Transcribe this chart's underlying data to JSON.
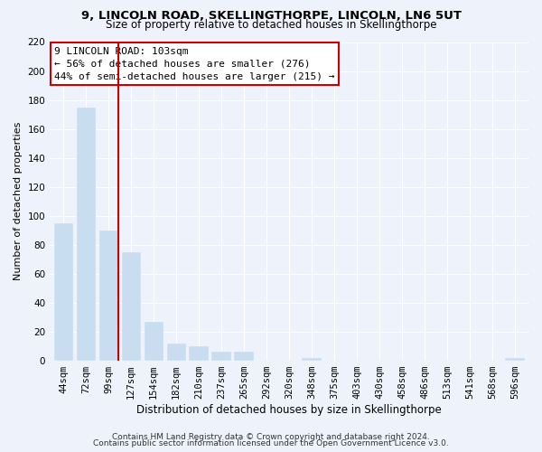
{
  "title": "9, LINCOLN ROAD, SKELLINGTHORPE, LINCOLN, LN6 5UT",
  "subtitle": "Size of property relative to detached houses in Skellingthorpe",
  "xlabel": "Distribution of detached houses by size in Skellingthorpe",
  "ylabel": "Number of detached properties",
  "bar_labels": [
    "44sqm",
    "72sqm",
    "99sqm",
    "127sqm",
    "154sqm",
    "182sqm",
    "210sqm",
    "237sqm",
    "265sqm",
    "292sqm",
    "320sqm",
    "348sqm",
    "375sqm",
    "403sqm",
    "430sqm",
    "458sqm",
    "486sqm",
    "513sqm",
    "541sqm",
    "568sqm",
    "596sqm"
  ],
  "bar_values": [
    95,
    175,
    90,
    75,
    27,
    12,
    10,
    6,
    6,
    0,
    0,
    2,
    0,
    0,
    0,
    0,
    0,
    0,
    0,
    0,
    2
  ],
  "bar_color": "#c8ddf0",
  "highlight_bar_index": 2,
  "highlight_color": "#cc0000",
  "annotation_title": "9 LINCOLN ROAD: 103sqm",
  "annotation_line1": "← 56% of detached houses are smaller (276)",
  "annotation_line2": "44% of semi-detached houses are larger (215) →",
  "ylim": [
    0,
    220
  ],
  "yticks": [
    0,
    20,
    40,
    60,
    80,
    100,
    120,
    140,
    160,
    180,
    200,
    220
  ],
  "footer1": "Contains HM Land Registry data © Crown copyright and database right 2024.",
  "footer2": "Contains public sector information licensed under the Open Government Licence v3.0.",
  "background_color": "#eef2fa",
  "grid_color": "#ffffff",
  "title_fontsize": 9.5,
  "subtitle_fontsize": 8.5,
  "ylabel_fontsize": 8,
  "xlabel_fontsize": 8.5,
  "tick_fontsize": 7.5,
  "ann_fontsize": 8.0,
  "footer_fontsize": 6.5
}
